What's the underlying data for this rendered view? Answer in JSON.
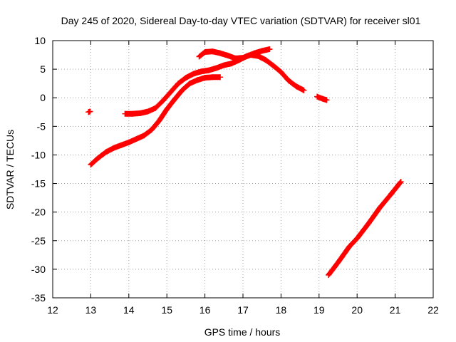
{
  "chart_data": {
    "type": "scatter",
    "title": "Day 245 of 2020, Sidereal Day-to-day VTEC variation (SDTVAR) for receiver sl01",
    "xlabel": "GPS time / hours",
    "ylabel": "SDTVAR / TECUs",
    "xlim": [
      12,
      22
    ],
    "ylim": [
      -35,
      10
    ],
    "xticks": [
      12,
      13,
      14,
      15,
      16,
      17,
      18,
      19,
      20,
      21,
      22
    ],
    "yticks": [
      -35,
      -30,
      -25,
      -20,
      -15,
      -10,
      -5,
      0,
      5,
      10
    ],
    "grid": true,
    "marker": "+",
    "color": "#ff0000",
    "series": [
      {
        "name": "a",
        "x": [
          12.94,
          12.98
        ],
        "y": [
          -2.5,
          -2.4
        ]
      },
      {
        "name": "b",
        "x": [
          13.0,
          13.2,
          13.4,
          13.6,
          13.8,
          14.0,
          14.2,
          14.4,
          14.6,
          14.8,
          15.0,
          15.2,
          15.4,
          15.6,
          15.8,
          16.0,
          16.2,
          16.4
        ],
        "y": [
          -11.7,
          -10.5,
          -9.5,
          -8.8,
          -8.3,
          -7.8,
          -7.2,
          -6.6,
          -5.6,
          -4.0,
          -2.0,
          -0.3,
          1.3,
          2.5,
          3.1,
          3.5,
          3.6,
          3.6
        ]
      },
      {
        "name": "c",
        "x": [
          13.9,
          14.1,
          14.3,
          14.5,
          14.7,
          14.9,
          15.1,
          15.3,
          15.5,
          15.7,
          15.9,
          16.1,
          16.3,
          16.5,
          16.7,
          16.9,
          17.1,
          17.3,
          17.5,
          17.7
        ],
        "y": [
          -2.8,
          -2.8,
          -2.7,
          -2.4,
          -1.8,
          -0.5,
          1.0,
          2.5,
          3.5,
          4.2,
          4.6,
          4.8,
          5.2,
          5.7,
          6.0,
          6.6,
          7.3,
          7.8,
          8.2,
          8.5
        ]
      },
      {
        "name": "d",
        "x": [
          15.85,
          16.0,
          16.2,
          16.4,
          16.6,
          16.8,
          17.0,
          17.2,
          17.4,
          17.6,
          17.8,
          18.0,
          18.2,
          18.4,
          18.6
        ],
        "y": [
          7.2,
          8.0,
          8.1,
          7.8,
          7.4,
          6.9,
          7.0,
          7.5,
          7.3,
          6.6,
          5.6,
          4.5,
          3.0,
          2.0,
          1.3
        ]
      },
      {
        "name": "e",
        "x": [
          18.95,
          19.1,
          19.2
        ],
        "y": [
          0.2,
          -0.2,
          -0.4
        ]
      },
      {
        "name": "f",
        "x": [
          19.25,
          19.5,
          19.8,
          20.0,
          20.3,
          20.6,
          20.9,
          21.15
        ],
        "y": [
          -31.0,
          -28.8,
          -26.0,
          -24.6,
          -22.0,
          -19.2,
          -16.8,
          -14.7
        ]
      }
    ]
  }
}
